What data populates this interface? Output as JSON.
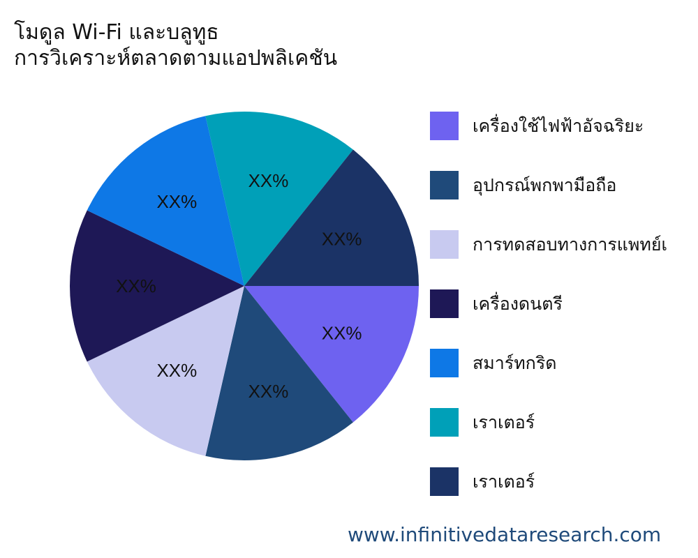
{
  "chart_data": {
    "type": "pie",
    "title_lines": [
      "โมดูล Wi-Fi และบลูทูธ",
      "การวิเคราะห์ตลาดตามแอปพลิเคชัน"
    ],
    "categories": [
      "เครื่องใช้ไฟฟ้าอัจฉริยะ",
      "อุปกรณ์พกพามือถือ",
      "การทดสอบทางการแพทย์เ",
      "เครื่องดนตรี",
      "สมาร์ทกริด",
      "เราเตอร์",
      "เราเตอร์"
    ],
    "values": [
      1,
      1,
      1,
      1,
      1,
      1,
      1
    ],
    "data_labels": [
      "XX%",
      "XX%",
      "XX%",
      "XX%",
      "XX%",
      "XX%",
      "XX%"
    ],
    "colors": [
      "#6e62f0",
      "#1f4a7a",
      "#c8caf0",
      "#1e1856",
      "#0e78e6",
      "#00a0b8",
      "#1b3366"
    ],
    "start_angle": "3 o'clock",
    "direction": "clockwise",
    "legend_position": "right"
  },
  "watermark": "www.infinitivedataresearch.com"
}
